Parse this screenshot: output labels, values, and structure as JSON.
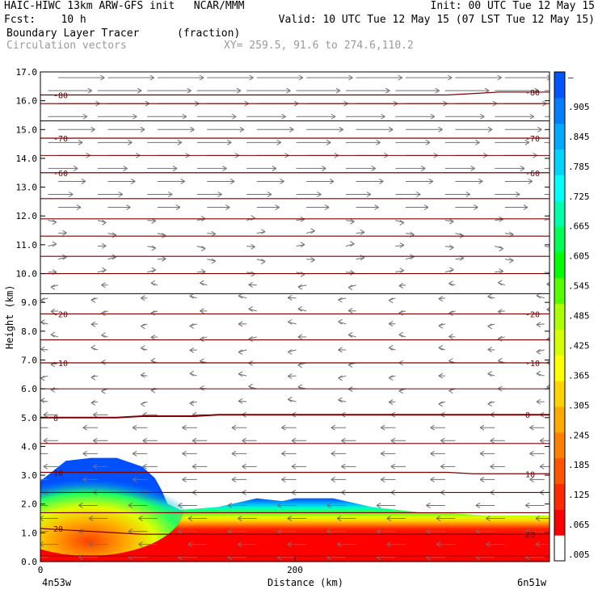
{
  "header": {
    "title_left": "HAIC-HIWC 13km ARW-GFS init   NCAR/MMM",
    "init": "Init: 00 UTC Tue 12 May 15",
    "fcst": "Fcst:    10 h",
    "valid": "Valid: 10 UTC Tue 12 May 15 (07 LST Tue 12 May 15)",
    "field": "Boundary Layer Tracer",
    "units": "(fraction)",
    "vectors": "Circulation vectors",
    "xy": "XY= 259.5, 91.6 to 274.6,110.2"
  },
  "colors": {
    "contour": "#7a0000",
    "vector": "#707070",
    "scale": [
      "#ffffff",
      "#ff0000",
      "#ff2a00",
      "#ff5500",
      "#ff7f00",
      "#ffaa00",
      "#ffd400",
      "#ffff00",
      "#d4ff00",
      "#aaff00",
      "#55ff00",
      "#00ff00",
      "#00ff55",
      "#00ffaa",
      "#00ffff",
      "#00d4ff",
      "#00aaff",
      "#0080ff",
      "#0055ff"
    ]
  },
  "chart_data": {
    "type": "heatmap",
    "xlabel": "Distance (km)",
    "ylabel": "Height (km)",
    "xlim": [
      0,
      400
    ],
    "ylim": [
      0,
      17
    ],
    "x_ticks": [
      0,
      200
    ],
    "x_endpoints": [
      "4n53w",
      "6n51w"
    ],
    "y_ticks": [
      "0.0",
      "1.0",
      "2.0",
      "3.0",
      "4.0",
      "5.0",
      "6.0",
      "7.0",
      "8.0",
      "9.0",
      "10.0",
      "11.0",
      "12.0",
      "13.0",
      "14.0",
      "15.0",
      "16.0",
      "17.0"
    ],
    "colorbar": {
      "labels": [
        ".005",
        ".065",
        ".125",
        ".185",
        ".245",
        ".305",
        ".365",
        ".425",
        ".485",
        ".545",
        ".605",
        ".665",
        ".725",
        ".785",
        ".845",
        ".905",
        "–"
      ]
    },
    "tracer_top_km": {
      "x": [
        0,
        20,
        40,
        60,
        80,
        90,
        95,
        100,
        110,
        140,
        170,
        190,
        200,
        230,
        240,
        260,
        280,
        300,
        320,
        350,
        380,
        400
      ],
      "y": [
        2.8,
        3.5,
        3.6,
        3.6,
        3.3,
        2.9,
        2.5,
        2.0,
        1.8,
        1.9,
        2.2,
        2.1,
        2.2,
        2.2,
        2.1,
        1.9,
        1.8,
        1.7,
        1.7,
        1.6,
        1.6,
        1.6
      ]
    },
    "temperature_contours": [
      {
        "label": "20",
        "z": [
          1.15,
          1.1,
          1.05,
          1.0,
          0.95,
          0.95,
          0.95,
          0.95,
          0.95,
          0.95,
          0.95,
          0.95,
          0.95,
          0.95,
          0.95,
          0.95,
          0.95,
          0.95,
          0.95,
          0.95,
          0.95
        ]
      },
      {
        "label": "10",
        "z": [
          3.1,
          3.1,
          3.1,
          3.1,
          3.1,
          3.1,
          3.1,
          3.1,
          3.1,
          3.1,
          3.1,
          3.1,
          3.1,
          3.1,
          3.1,
          3.1,
          3.1,
          3.05,
          3.05,
          3.05,
          3.05
        ]
      },
      {
        "label": "0",
        "z": [
          5.0,
          5.0,
          5.0,
          5.0,
          5.05,
          5.05,
          5.05,
          5.1,
          5.1,
          5.1,
          5.1,
          5.1,
          5.1,
          5.1,
          5.1,
          5.1,
          5.1,
          5.1,
          5.1,
          5.1,
          5.1
        ]
      },
      {
        "label": "-10",
        "z": [
          6.9,
          6.9,
          6.9,
          6.9,
          6.9,
          6.9,
          6.9,
          6.9,
          6.9,
          6.9,
          6.9,
          6.9,
          6.9,
          6.9,
          6.9,
          6.9,
          6.9,
          6.9,
          6.9,
          6.9,
          6.9
        ]
      },
      {
        "label": "-20",
        "z": [
          8.6,
          8.6,
          8.6,
          8.6,
          8.6,
          8.6,
          8.6,
          8.6,
          8.6,
          8.6,
          8.6,
          8.6,
          8.6,
          8.6,
          8.6,
          8.6,
          8.6,
          8.6,
          8.6,
          8.6,
          8.6
        ]
      },
      {
        "label": "-60",
        "z": [
          13.5,
          13.5,
          13.5,
          13.5,
          13.5,
          13.5,
          13.5,
          13.5,
          13.5,
          13.5,
          13.5,
          13.5,
          13.5,
          13.5,
          13.5,
          13.5,
          13.5,
          13.5,
          13.5,
          13.5,
          13.5
        ]
      },
      {
        "label": "-70",
        "z": [
          14.7,
          14.7,
          14.7,
          14.7,
          14.7,
          14.7,
          14.7,
          14.7,
          14.7,
          14.7,
          14.7,
          14.7,
          14.7,
          14.7,
          14.7,
          14.7,
          14.7,
          14.7,
          14.7,
          14.7,
          14.7
        ]
      },
      {
        "label": "-80",
        "z": [
          16.2,
          16.2,
          16.2,
          16.2,
          16.2,
          16.2,
          16.2,
          16.2,
          16.2,
          16.2,
          16.2,
          16.2,
          16.2,
          16.2,
          16.2,
          16.2,
          16.2,
          16.25,
          16.3,
          16.3,
          16.3
        ]
      }
    ],
    "other_isotherm_heights_km": [
      0.2,
      1.7,
      2.4,
      4.1,
      6.0,
      7.7,
      9.3,
      10.0,
      10.6,
      11.3,
      11.9,
      12.6,
      14.1,
      15.3,
      15.9
    ]
  }
}
